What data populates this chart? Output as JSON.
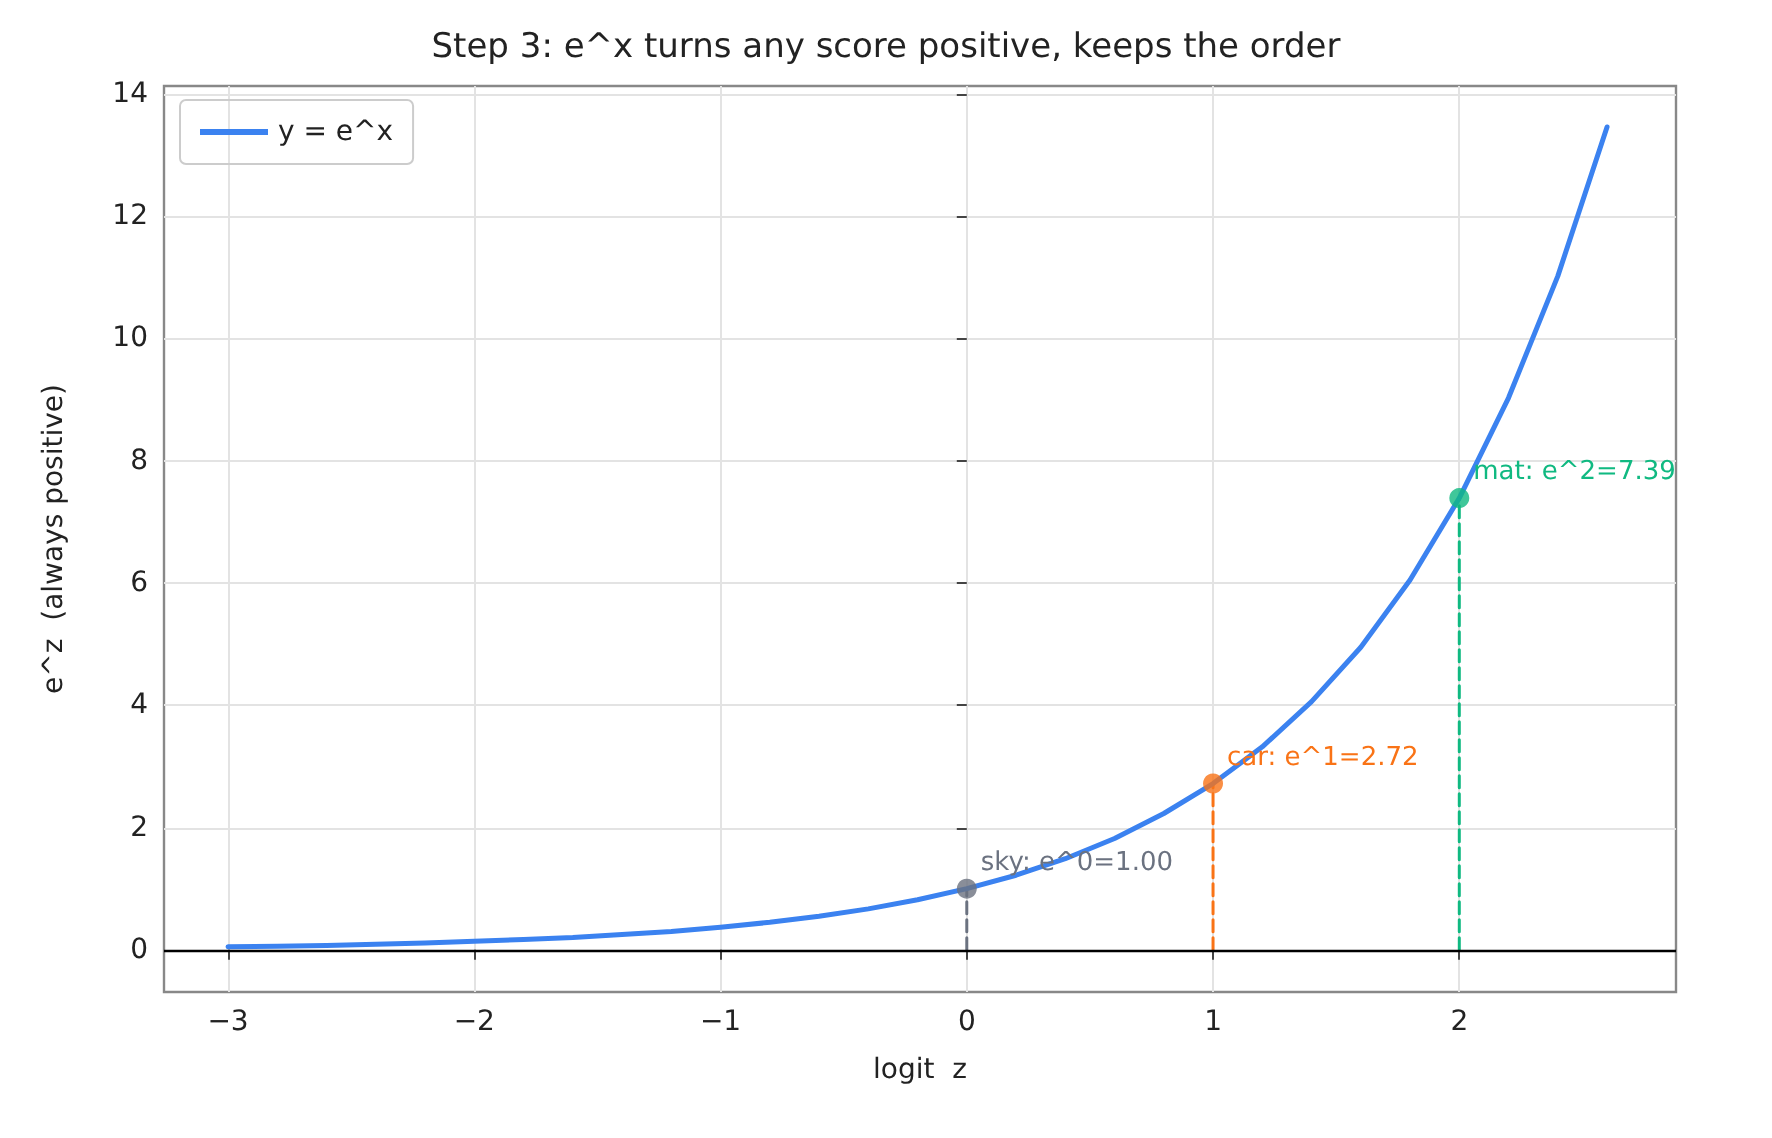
{
  "chart_data": {
    "type": "line",
    "title": "Step 3: e^x turns any score positive, keeps the order",
    "xlabel": "logit  z",
    "ylabel": "e^z  (always positive)",
    "xlim": [
      -3.26,
      2.88
    ],
    "xticks": [
      {
        "value": -3,
        "label": "−3"
      },
      {
        "value": -2,
        "label": "−2"
      },
      {
        "value": -1,
        "label": "−1"
      },
      0,
      1,
      2
    ],
    "ylim": [
      -0.69,
      14.13
    ],
    "yticks": [
      0,
      2,
      4,
      6,
      8,
      10,
      12,
      14
    ],
    "grid": true,
    "legend": "top left",
    "series": [
      {
        "name": "y = e^x",
        "color": "#3b82f0",
        "line_style": "solid",
        "marker": "none",
        "x": [
          -3,
          -2.8,
          -2.6,
          -2.4,
          -2.2,
          -2,
          -1.8,
          -1.6,
          -1.4,
          -1.2,
          -1,
          -0.8,
          -0.6,
          -0.4,
          -0.2,
          0,
          0.2,
          0.4,
          0.6,
          0.8,
          1,
          1.2,
          1.4,
          1.6,
          1.8,
          2,
          2.2,
          2.4,
          2.6
        ],
        "values": [
          0.05,
          0.06,
          0.07,
          0.09,
          0.11,
          0.14,
          0.17,
          0.2,
          0.25,
          0.3,
          0.37,
          0.45,
          0.55,
          0.67,
          0.82,
          1,
          1.22,
          1.49,
          1.82,
          2.23,
          2.72,
          3.32,
          4.06,
          4.95,
          6.05,
          7.39,
          9.03,
          11.02,
          13.46
        ]
      },
      {
        "color": "#6b7280",
        "line_style": "dashed",
        "marker": "none",
        "x": [
          0,
          0
        ],
        "values": [
          0,
          1
        ]
      },
      {
        "color": "#f97316",
        "line_style": "dashed",
        "marker": "none",
        "x": [
          1,
          1
        ],
        "values": [
          0,
          2.72
        ]
      },
      {
        "color": "#10b981",
        "line_style": "dashed",
        "marker": "none",
        "x": [
          2,
          2
        ],
        "values": [
          0,
          7.39
        ]
      },
      {
        "type": "scatter",
        "marker": "circle",
        "colors": [
          "#6b7280",
          "#f97316",
          "#10b981"
        ],
        "x": [
          0,
          1,
          2
        ],
        "values": [
          1,
          2.72,
          7.39
        ]
      }
    ],
    "ref_lines": [
      {
        "axis": "y",
        "value": 0,
        "color": "#000000",
        "line_style": "solid"
      }
    ],
    "annotations": [
      {
        "text": "sky: e^0=1.00",
        "x": 0,
        "y": 1
      },
      {
        "text": "car: e^1=2.72",
        "x": 1,
        "y": 2.72
      },
      {
        "text": "mat: e^2=7.39",
        "x": 2,
        "y": 7.39
      }
    ]
  }
}
